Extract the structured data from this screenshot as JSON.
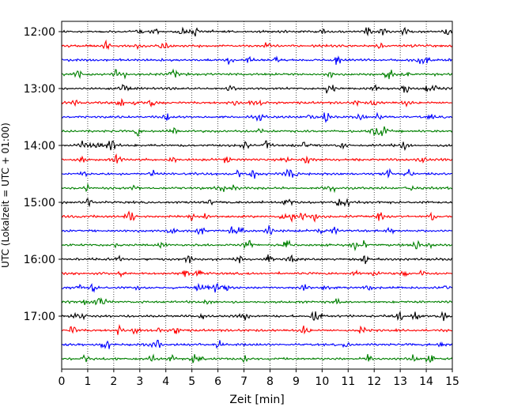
{
  "chart_data": {
    "type": "line",
    "title": "",
    "xlabel": "Zeit  [min]",
    "ylabel": "UTC (Lokalzeit = UTC + 01:00)",
    "xlim": [
      0,
      15
    ],
    "x_ticks": [
      "0",
      "1",
      "2",
      "3",
      "4",
      "5",
      "6",
      "7",
      "8",
      "9",
      "10",
      "11",
      "12",
      "13",
      "14",
      "15"
    ],
    "y_ticks": [
      "12:00",
      "13:00",
      "14:00",
      "15:00",
      "16:00",
      "17:00"
    ],
    "trace_start": "12:00",
    "trace_interval_minutes": 15,
    "trace_count": 24,
    "trace_colors": [
      "#000000",
      "#ff0000",
      "#0000ff",
      "#008000"
    ],
    "grid": "vertical-dotted",
    "legend": "none"
  }
}
